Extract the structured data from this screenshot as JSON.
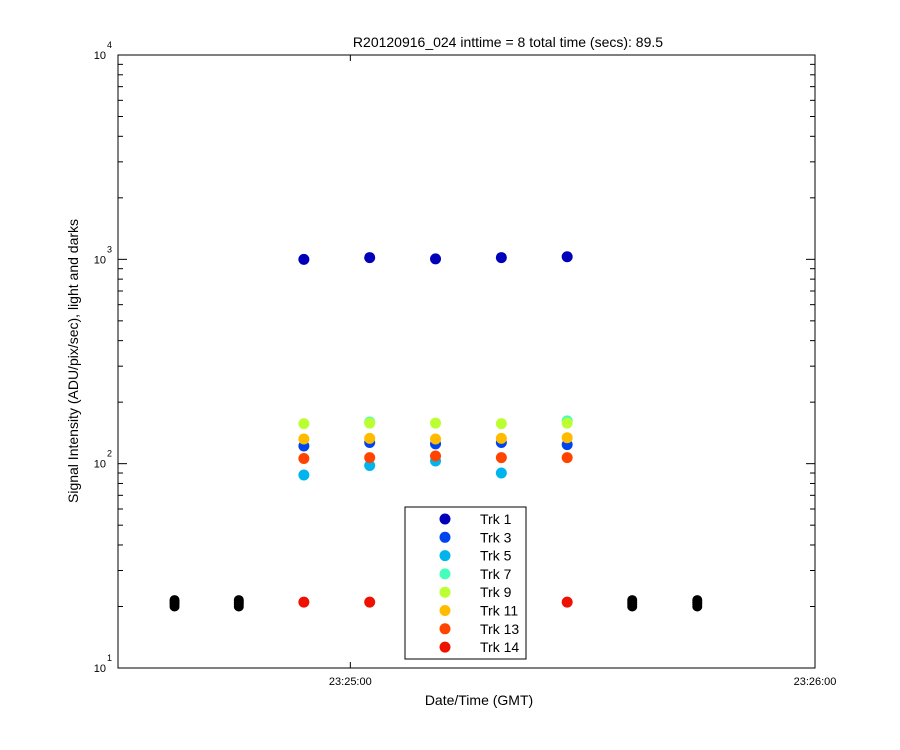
{
  "chart_data": {
    "type": "scatter",
    "title": "R20120916_024 inttime = 8 total time (secs): 89.5",
    "xlabel": "Date/Time (GMT)",
    "ylabel": "Signal Intensity (ADU/pix/sec), light and darks",
    "y_scale": "log",
    "ylim": [
      10,
      10000
    ],
    "xlim": [
      "23:24:30",
      "23:26:00"
    ],
    "x_ticks": [
      "23:25:00",
      "23:26:00"
    ],
    "y_tick_labels": [
      {
        "base": "10",
        "exp": "1",
        "value": 10
      },
      {
        "base": "10",
        "exp": "2",
        "value": 100
      },
      {
        "base": "10",
        "exp": "3",
        "value": 1000
      },
      {
        "base": "10",
        "exp": "4",
        "value": 10000
      }
    ],
    "grid": false,
    "legend_position": "bottom-center",
    "series": [
      {
        "name": "Trk 1",
        "color": "#0000bb",
        "points": [
          [
            "23:24:54",
            1000
          ],
          [
            "23:25:02.5",
            1020
          ],
          [
            "23:25:11",
            1005
          ],
          [
            "23:25:19.5",
            1020
          ],
          [
            "23:25:28",
            1030
          ]
        ]
      },
      {
        "name": "Trk 3",
        "color": "#0044ee",
        "points": [
          [
            "23:24:54",
            122
          ],
          [
            "23:25:02.5",
            127
          ],
          [
            "23:25:11",
            125
          ],
          [
            "23:25:19.5",
            127
          ],
          [
            "23:25:28",
            124
          ]
        ]
      },
      {
        "name": "Trk 5",
        "color": "#00b4ee",
        "points": [
          [
            "23:24:54",
            88
          ],
          [
            "23:25:02.5",
            98
          ],
          [
            "23:25:11",
            103
          ],
          [
            "23:25:19.5",
            90
          ]
        ]
      },
      {
        "name": "Trk 7",
        "color": "#44ffbb",
        "points": [
          [
            "23:25:02.5",
            160
          ],
          [
            "23:25:28",
            162
          ]
        ]
      },
      {
        "name": "Trk 9",
        "color": "#bbff33",
        "points": [
          [
            "23:24:54",
            157
          ],
          [
            "23:25:02.5",
            158
          ],
          [
            "23:25:11",
            158
          ],
          [
            "23:25:19.5",
            157
          ],
          [
            "23:25:28",
            158
          ]
        ]
      },
      {
        "name": "Trk 11",
        "color": "#ffbb00",
        "points": [
          [
            "23:24:54",
            132
          ],
          [
            "23:25:02.5",
            133
          ],
          [
            "23:25:11",
            132
          ],
          [
            "23:25:19.5",
            133
          ],
          [
            "23:25:28",
            134
          ]
        ]
      },
      {
        "name": "Trk 13",
        "color": "#ff4400",
        "points": [
          [
            "23:24:54",
            106
          ],
          [
            "23:25:02.5",
            107
          ],
          [
            "23:25:11",
            109
          ],
          [
            "23:25:19.5",
            107
          ],
          [
            "23:25:28",
            107
          ]
        ]
      },
      {
        "name": "Trk 14",
        "color": "#ee1100",
        "points": [
          [
            "23:24:54",
            21
          ],
          [
            "23:25:02.5",
            21
          ],
          [
            "23:25:28",
            21
          ]
        ]
      }
    ],
    "darks": {
      "color": "#000000",
      "points": [
        [
          "23:24:37.3",
          20
        ],
        [
          "23:24:37.3",
          20.5
        ],
        [
          "23:24:37.3",
          21
        ],
        [
          "23:24:37.3",
          21.5
        ],
        [
          "23:24:45.6",
          20
        ],
        [
          "23:24:45.6",
          20.5
        ],
        [
          "23:24:45.6",
          21
        ],
        [
          "23:24:45.6",
          21.5
        ],
        [
          "23:25:36.4",
          20
        ],
        [
          "23:25:36.4",
          20.5
        ],
        [
          "23:25:36.4",
          21
        ],
        [
          "23:25:36.4",
          21.5
        ],
        [
          "23:25:44.8",
          20
        ],
        [
          "23:25:44.8",
          20.5
        ],
        [
          "23:25:44.8",
          21
        ],
        [
          "23:25:44.8",
          21.5
        ]
      ]
    }
  }
}
